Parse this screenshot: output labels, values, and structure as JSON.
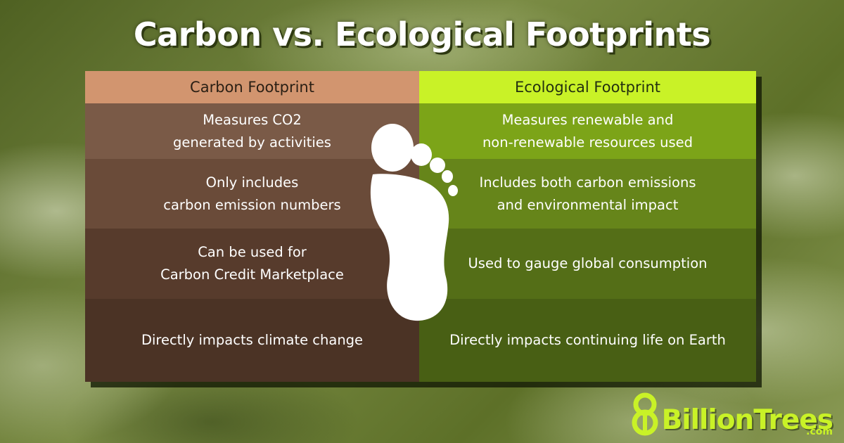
{
  "title": "Carbon vs. Ecological Footprints",
  "table": {
    "left": {
      "header": "Carbon Footprint",
      "rows": [
        "Measures CO2\ngenerated by activities",
        "Only includes\ncarbon emission numbers",
        "Can be used for\nCarbon Credit Marketplace",
        "Directly impacts climate change"
      ]
    },
    "right": {
      "header": "Ecological Footprint",
      "rows": [
        "Measures renewable and\nnon-renewable resources used",
        "Includes both carbon emissions\nand environmental impact",
        "Used to gauge global consumption",
        "Directly impacts continuing life on Earth"
      ]
    }
  },
  "logo": {
    "text": "BillionTrees",
    "domain": ".com",
    "mark": "8"
  },
  "colors": {
    "carbon_header": "#d2956f",
    "ecological_header": "#c9f227",
    "brand_green": "#c9f227"
  },
  "icons": {
    "centerpiece": "footprint-icon"
  }
}
